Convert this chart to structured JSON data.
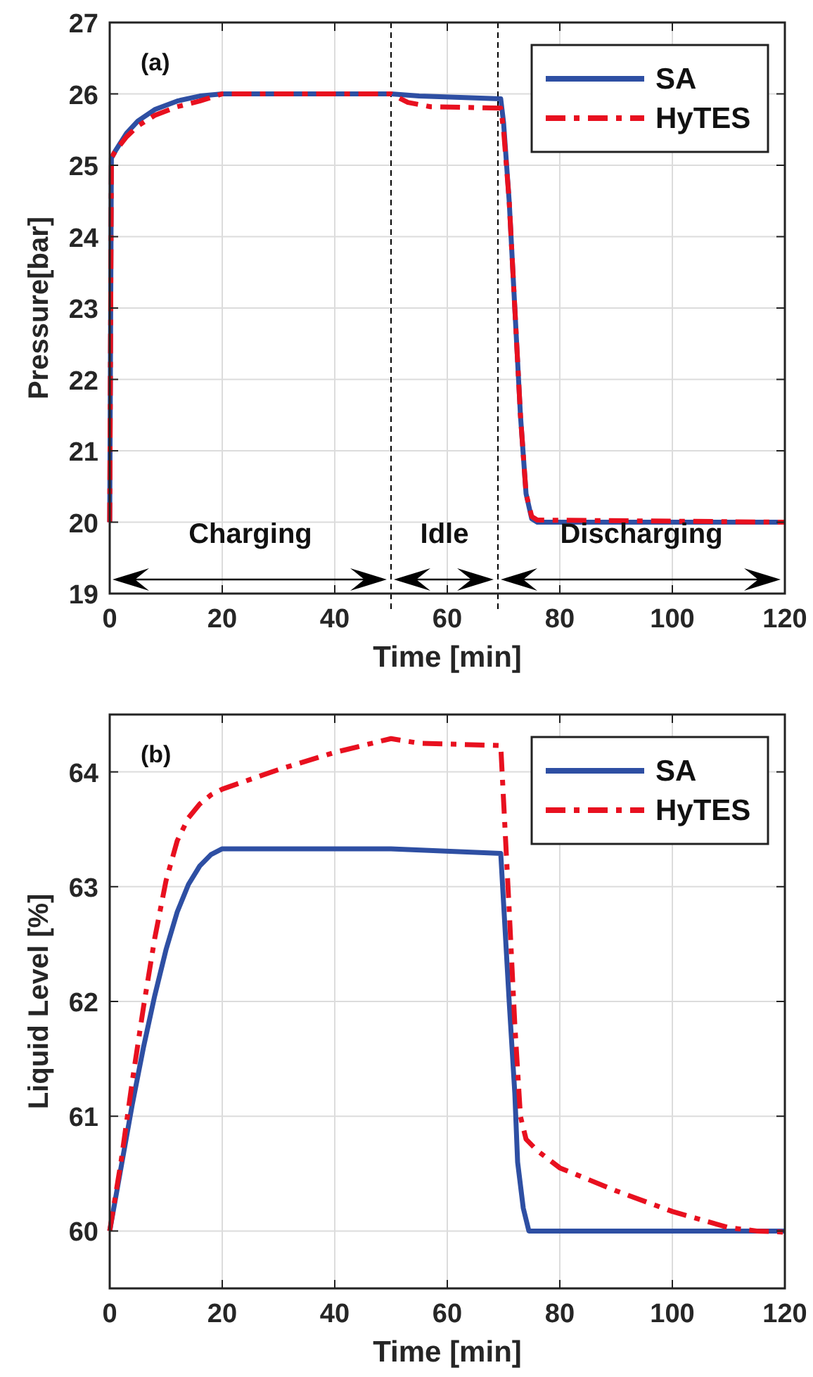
{
  "chart_data": [
    {
      "type": "line",
      "title": "(a)",
      "xlabel": "Time [min]",
      "ylabel": "Pressure[bar]",
      "xlim": [
        0,
        120
      ],
      "xticks": [
        0,
        20,
        40,
        60,
        80,
        100,
        120
      ],
      "ylim": [
        19,
        27
      ],
      "yticks": [
        19,
        20,
        21,
        22,
        23,
        24,
        25,
        26,
        27
      ],
      "grid": true,
      "legend": "top right",
      "ref_lines": [
        {
          "axis": "x",
          "value": 50,
          "line_style": "dashed",
          "color": "#000000"
        },
        {
          "axis": "x",
          "value": 69,
          "line_style": "dashed",
          "color": "#000000"
        }
      ],
      "annotations": [
        "Charging",
        "Idle",
        "Discharging"
      ],
      "series": [
        {
          "name": "SA",
          "color": "#2e4fa3",
          "line_style": "solid",
          "x": [
            0,
            0.3,
            1,
            3,
            5,
            8,
            12,
            16,
            20,
            50,
            55,
            69.5,
            70,
            71,
            72,
            73,
            74,
            75,
            76,
            120
          ],
          "values": [
            20,
            25.1,
            25.2,
            25.45,
            25.62,
            25.78,
            25.9,
            25.97,
            26.0,
            26.0,
            25.97,
            25.93,
            25.6,
            24.5,
            23,
            21.5,
            20.4,
            20.05,
            20,
            20
          ]
        },
        {
          "name": "HyTES",
          "color": "#e8101f",
          "line_style": "dashed",
          "x": [
            0,
            0.3,
            1,
            3,
            5,
            8,
            12,
            16,
            20,
            50,
            53,
            57,
            69.5,
            70,
            71,
            72,
            73,
            74,
            75,
            76,
            120
          ],
          "values": [
            20,
            25.1,
            25.2,
            25.4,
            25.55,
            25.7,
            25.82,
            25.9,
            26.0,
            26.0,
            25.88,
            25.82,
            25.8,
            25.5,
            24.5,
            23,
            21.5,
            20.4,
            20.08,
            20.03,
            20
          ]
        }
      ]
    },
    {
      "type": "line",
      "title": "(b)",
      "xlabel": "Time [min]",
      "ylabel": "Liquid Level [%]",
      "xlim": [
        0,
        120
      ],
      "xticks": [
        0,
        20,
        40,
        60,
        80,
        100,
        120
      ],
      "ylim": [
        59.5,
        64.5
      ],
      "yticks": [
        60,
        61,
        62,
        63,
        64
      ],
      "grid": true,
      "legend": "top right",
      "series": [
        {
          "name": "SA",
          "color": "#2e4fa3",
          "line_style": "solid",
          "x": [
            0,
            2,
            4,
            6,
            8,
            10,
            12,
            14,
            16,
            18,
            20,
            50,
            69.5,
            71,
            72,
            72.5,
            73.5,
            74.5,
            120
          ],
          "values": [
            60,
            60.55,
            61.1,
            61.6,
            62.05,
            62.45,
            62.78,
            63.02,
            63.18,
            63.28,
            63.33,
            63.33,
            63.29,
            62,
            61.2,
            60.6,
            60.2,
            60,
            60
          ]
        },
        {
          "name": "HyTES",
          "color": "#e8101f",
          "line_style": "dashed",
          "x": [
            0,
            2,
            4,
            6,
            8,
            10,
            12,
            14,
            16,
            18,
            20,
            30,
            40,
            50,
            55,
            69.5,
            71,
            72,
            73,
            74,
            76,
            80,
            90,
            100,
            110,
            115,
            120
          ],
          "values": [
            60,
            60.6,
            61.3,
            61.95,
            62.55,
            63.05,
            63.4,
            63.6,
            63.72,
            63.8,
            63.85,
            64.02,
            64.17,
            64.29,
            64.25,
            64.23,
            62.8,
            61.8,
            61,
            60.8,
            60.7,
            60.55,
            60.35,
            60.17,
            60.03,
            60,
            59.99
          ]
        }
      ]
    }
  ]
}
